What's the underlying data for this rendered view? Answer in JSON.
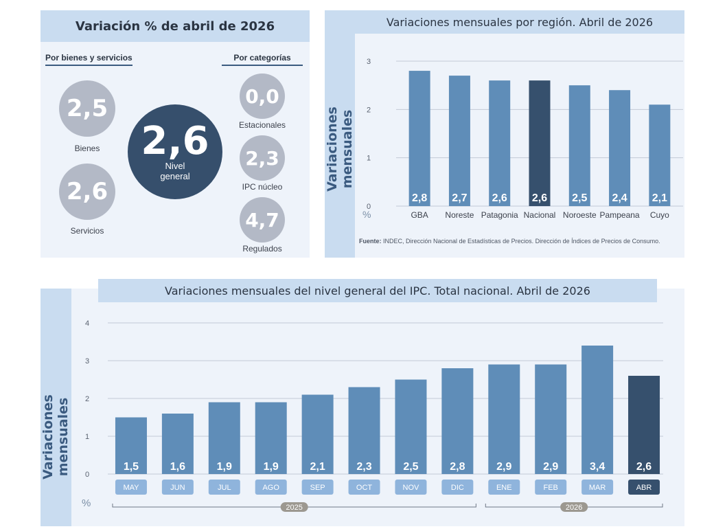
{
  "summary": {
    "title": "Variación % de abril de 2026",
    "left_header": "Por bienes y servicios",
    "right_header": "Por categorías",
    "general": {
      "value": "2,6",
      "label_line1": "Nivel",
      "label_line2": "general"
    },
    "goods": {
      "value": "2,5",
      "label": "Bienes"
    },
    "services": {
      "value": "2,6",
      "label": "Servicios"
    },
    "seasonal": {
      "value": "0,0",
      "label": "Estacionales"
    },
    "core": {
      "value": "2,3",
      "label": "IPC núcleo"
    },
    "regulated": {
      "value": "4,7",
      "label": "Regulados"
    }
  },
  "colors": {
    "bar": "#5f8db8",
    "highlight": "#36506d",
    "panel": "#eef3fa",
    "title_band": "#c9dcf0",
    "circle_light": "#b3b9c6",
    "circle_dark": "#364f6c"
  },
  "chart_data": [
    {
      "type": "bar",
      "title": "Variaciones mensuales por región. Abril de 2026",
      "ylabel": "Variaciones mensuales",
      "unit": "%",
      "categories": [
        "GBA",
        "Noreste",
        "Patagonia",
        "Nacional",
        "Noroeste",
        "Pampeana",
        "Cuyo"
      ],
      "values": [
        2.8,
        2.7,
        2.6,
        2.6,
        2.5,
        2.4,
        2.1
      ],
      "value_labels": [
        "2,8",
        "2,7",
        "2,6",
        "2,6",
        "2,5",
        "2,4",
        "2,1"
      ],
      "highlight_category": "Nacional",
      "yticks": [
        "0",
        "1",
        "2",
        "3"
      ],
      "ylim": [
        0,
        3
      ],
      "grid": true,
      "source_label": "Fuente:",
      "source_text": " INDEC, Dirección Nacional de Estadísticas de Precios. Dirección de Índices de Precios de Consumo."
    },
    {
      "type": "bar",
      "title": "Variaciones mensuales del nivel general del IPC. Total nacional. Abril de 2026",
      "ylabel": "Variaciones mensuales",
      "unit": "%",
      "categories": [
        "MAY",
        "JUN",
        "JUL",
        "AGO",
        "SEP",
        "OCT",
        "NOV",
        "DIC",
        "ENE",
        "FEB",
        "MAR",
        "ABR"
      ],
      "values": [
        1.5,
        1.6,
        1.9,
        1.9,
        2.1,
        2.3,
        2.5,
        2.8,
        2.9,
        2.9,
        3.4,
        2.6
      ],
      "value_labels": [
        "1,5",
        "1,6",
        "1,9",
        "1,9",
        "2,1",
        "2,3",
        "2,5",
        "2,8",
        "2,9",
        "2,9",
        "3,4",
        "2,6"
      ],
      "highlight_category": "ABR",
      "yticks": [
        "0",
        "1",
        "2",
        "3",
        "4"
      ],
      "ylim": [
        0,
        4
      ],
      "grid": true,
      "year_groups": [
        {
          "label": "2025",
          "count": 8
        },
        {
          "label": "2026",
          "count": 4
        }
      ]
    }
  ]
}
